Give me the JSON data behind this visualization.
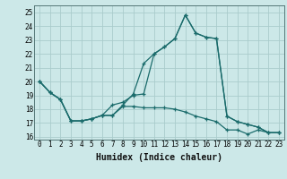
{
  "xlabel": "Humidex (Indice chaleur)",
  "background_color": "#cce8e8",
  "grid_color": "#aacccc",
  "line_color": "#1a6b6b",
  "xlim": [
    -0.5,
    23.5
  ],
  "ylim": [
    15.8,
    25.5
  ],
  "yticks": [
    16,
    17,
    18,
    19,
    20,
    21,
    22,
    23,
    24,
    25
  ],
  "xticks": [
    0,
    1,
    2,
    3,
    4,
    5,
    6,
    7,
    8,
    9,
    10,
    11,
    12,
    13,
    14,
    15,
    16,
    17,
    18,
    19,
    20,
    21,
    22,
    23
  ],
  "series": [
    {
      "x": [
        0,
        1,
        2,
        3,
        4,
        5,
        6,
        7,
        8,
        9,
        10,
        11,
        12,
        13,
        14,
        15,
        16,
        17,
        18,
        19,
        20,
        21,
        22,
        23
      ],
      "y": [
        20.0,
        19.2,
        18.7,
        17.15,
        17.15,
        17.3,
        17.55,
        17.55,
        18.3,
        19.1,
        21.3,
        22.0,
        22.5,
        23.1,
        24.8,
        23.5,
        23.2,
        23.1,
        17.5,
        17.1,
        16.9,
        16.7,
        16.3,
        16.3
      ]
    },
    {
      "x": [
        0,
        1,
        2,
        3,
        4,
        5,
        6,
        7,
        8,
        9,
        10,
        11,
        12,
        13,
        14,
        15,
        16,
        17,
        18,
        19,
        20,
        21,
        22,
        23
      ],
      "y": [
        20.0,
        19.2,
        18.7,
        17.15,
        17.15,
        17.3,
        17.55,
        18.3,
        18.5,
        19.0,
        19.1,
        22.0,
        22.5,
        23.1,
        24.8,
        23.5,
        23.2,
        23.1,
        17.5,
        17.1,
        16.9,
        16.7,
        16.3,
        16.3
      ]
    },
    {
      "x": [
        0,
        1,
        2,
        3,
        4,
        5,
        6,
        7,
        8,
        9,
        10,
        11,
        12,
        13,
        14,
        15,
        16,
        17,
        18,
        19,
        20,
        21,
        22,
        23
      ],
      "y": [
        20.0,
        19.2,
        18.7,
        17.15,
        17.15,
        17.3,
        17.55,
        17.55,
        18.2,
        18.2,
        18.1,
        18.1,
        18.1,
        18.0,
        17.8,
        17.5,
        17.3,
        17.1,
        16.5,
        16.5,
        16.2,
        16.5,
        16.3,
        16.3
      ]
    }
  ]
}
